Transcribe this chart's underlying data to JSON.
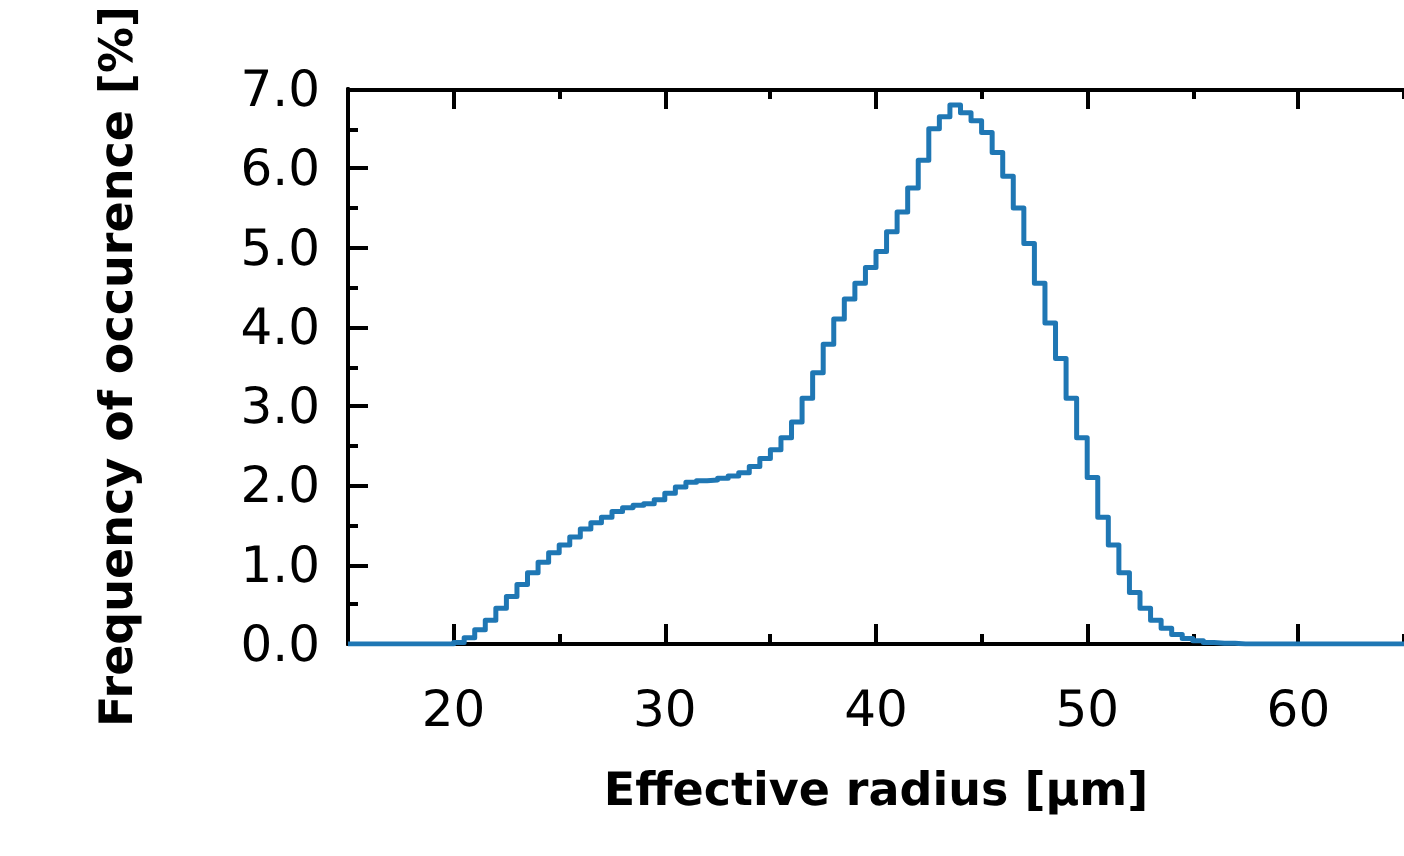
{
  "chart_data": {
    "type": "histogram",
    "xlabel": "Effective radius [μm]",
    "ylabel": "Frequency of occurence [%]",
    "color": "#1f77b4",
    "bins": [
      15,
      15.5,
      16,
      16.5,
      17,
      17.5,
      18,
      18.5,
      19,
      19.5,
      20,
      20.5,
      21,
      21.5,
      22,
      22.5,
      23,
      23.5,
      24,
      24.5,
      25,
      25.5,
      26,
      26.5,
      27,
      27.5,
      28,
      28.5,
      29,
      29.5,
      30,
      30.5,
      31,
      31.5,
      32,
      32.5,
      33,
      33.5,
      34,
      34.5,
      35,
      35.5,
      36,
      36.5,
      37,
      37.5,
      38,
      38.5,
      39,
      39.5,
      40,
      40.5,
      41,
      41.5,
      42,
      42.5,
      43,
      43.5,
      44,
      44.5,
      45,
      45.5,
      46,
      46.5,
      47,
      47.5,
      48,
      48.5,
      49,
      49.5,
      50,
      50.5,
      51,
      51.5,
      52,
      52.5,
      53,
      53.5,
      54,
      54.5,
      55,
      55.5,
      56,
      56.5,
      57,
      57.5,
      58,
      58.5,
      59,
      59.5,
      60,
      60.5,
      61,
      61.5,
      62,
      62.5,
      63,
      63.5,
      64,
      64.5,
      65
    ],
    "values": [
      0,
      0,
      0,
      0,
      0,
      0,
      0,
      0,
      0,
      0,
      0.02,
      0.08,
      0.18,
      0.3,
      0.45,
      0.6,
      0.75,
      0.9,
      1.03,
      1.15,
      1.25,
      1.35,
      1.45,
      1.53,
      1.6,
      1.67,
      1.72,
      1.75,
      1.77,
      1.82,
      1.9,
      1.98,
      2.04,
      2.06,
      2.07,
      2.09,
      2.12,
      2.16,
      2.24,
      2.34,
      2.45,
      2.6,
      2.8,
      3.1,
      3.42,
      3.78,
      4.1,
      4.35,
      4.55,
      4.75,
      4.95,
      5.2,
      5.45,
      5.75,
      6.1,
      6.5,
      6.65,
      6.8,
      6.7,
      6.6,
      6.45,
      6.2,
      5.9,
      5.5,
      5.05,
      4.55,
      4.05,
      3.6,
      3.1,
      2.6,
      2.1,
      1.6,
      1.25,
      0.9,
      0.65,
      0.45,
      0.3,
      0.2,
      0.12,
      0.07,
      0.04,
      0.02,
      0.01,
      0.01,
      0,
      0,
      0,
      0,
      0,
      0,
      0,
      0,
      0,
      0,
      0,
      0,
      0,
      0,
      0,
      0
    ],
    "xlim": [
      15,
      65
    ],
    "xticks": [
      {
        "value": 15,
        "label": null
      },
      20,
      {
        "value": 25,
        "label": null
      },
      30,
      {
        "value": 35,
        "label": null
      },
      40,
      {
        "value": 45,
        "label": null
      },
      50,
      {
        "value": 55,
        "label": null
      },
      60,
      {
        "value": 65,
        "label": null
      }
    ],
    "ylim": [
      0,
      7
    ],
    "yticks": [
      {
        "value": 0,
        "label": "0.0"
      },
      {
        "value": 0.5,
        "label": null
      },
      {
        "value": 1,
        "label": "1.0"
      },
      {
        "value": 1.5,
        "label": null
      },
      {
        "value": 2,
        "label": "2.0"
      },
      {
        "value": 2.5,
        "label": null
      },
      {
        "value": 3,
        "label": "3.0"
      },
      {
        "value": 3.5,
        "label": null
      },
      {
        "value": 4,
        "label": "4.0"
      },
      {
        "value": 4.5,
        "label": null
      },
      {
        "value": 5,
        "label": "5.0"
      },
      {
        "value": 5.5,
        "label": null
      },
      {
        "value": 6,
        "label": "6.0"
      },
      {
        "value": 6.5,
        "label": null
      },
      {
        "value": 7,
        "label": "7.0"
      }
    ]
  }
}
